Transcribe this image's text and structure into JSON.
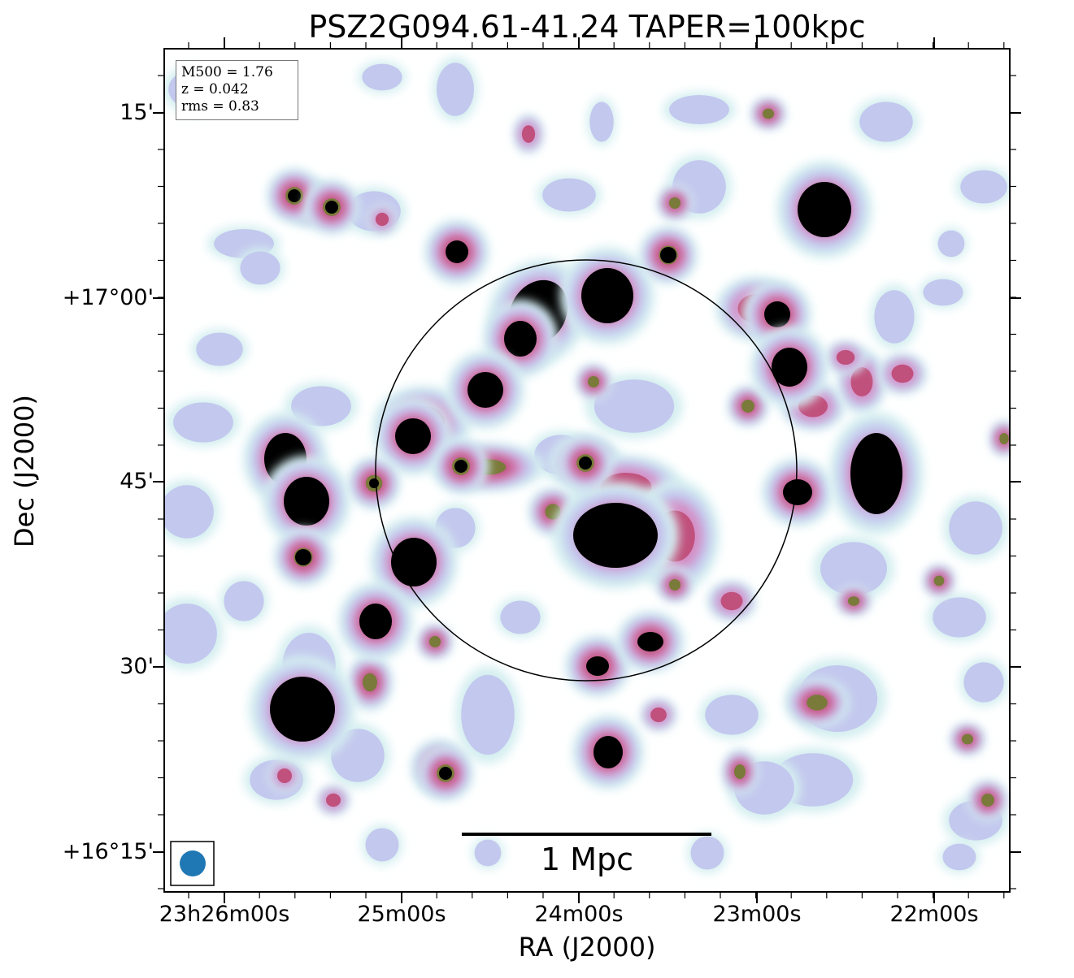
{
  "title": "PSZ2G094.61-41.24 TAPER=100kpc",
  "axes": {
    "xlabel": "RA (J2000)",
    "ylabel": "Dec (J2000)",
    "xticks": [
      "23h26m00s",
      "25m00s",
      "24m00s",
      "23m00s",
      "22m00s"
    ],
    "yticks": [
      "15'",
      "+17°00'",
      "45'",
      "30'",
      "+16°15'"
    ]
  },
  "info": {
    "m500": "M500 = 1.76",
    "z": "z = 0.042",
    "rms": "rms = 0.83"
  },
  "scalebar": {
    "label": "1 Mpc",
    "color": "#000000"
  },
  "beam": {
    "color": "#1f77b4"
  },
  "colormap": [
    "#ffffff",
    "#d4eef0",
    "#c3c8ee",
    "#d58cc4",
    "#c0507c",
    "#7a7a3a",
    "#1c4a2a",
    "#000000"
  ],
  "circle_color": "#000000"
}
